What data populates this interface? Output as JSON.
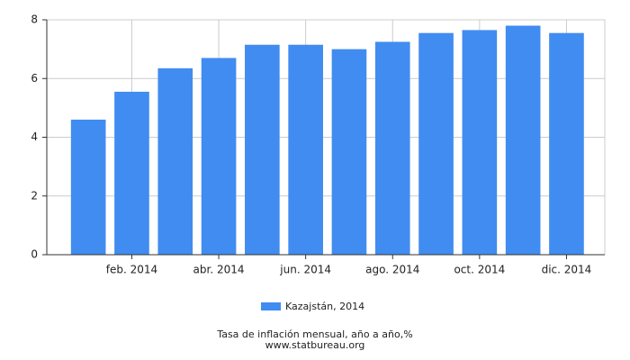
{
  "chart_data": {
    "type": "bar",
    "categories": [
      null,
      "feb. 2014",
      null,
      "abr. 2014",
      null,
      "jun. 2014",
      null,
      "ago. 2014",
      null,
      "oct. 2014",
      null,
      "dic. 2014"
    ],
    "series": [
      {
        "name": "Kazajstán, 2014",
        "color": "#418cf0",
        "values": [
          4.6,
          5.55,
          6.35,
          6.7,
          7.15,
          7.15,
          7.0,
          7.25,
          7.55,
          7.65,
          7.8,
          7.55
        ]
      }
    ],
    "ylim": [
      0,
      8
    ],
    "yticks": [
      0,
      2,
      4,
      6,
      8
    ],
    "grid": true,
    "caption": "Tasa de inflación mensual, año a año,%",
    "source": "www.statbureau.org"
  }
}
